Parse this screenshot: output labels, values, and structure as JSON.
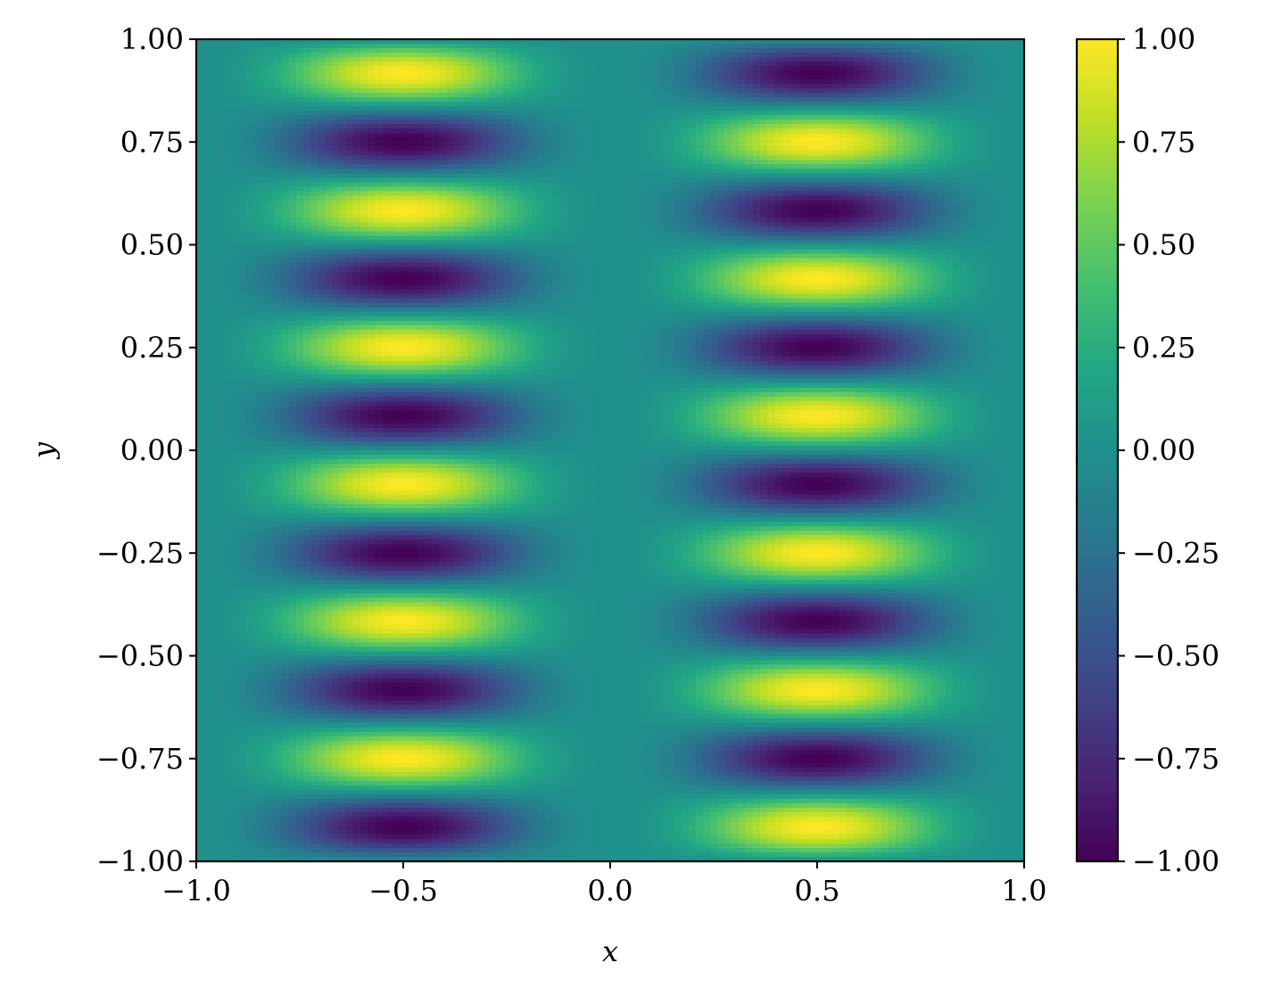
{
  "chart_data": {
    "type": "heatmap",
    "title": "",
    "xlabel": "x",
    "ylabel": "y",
    "xlim": [
      -1.0,
      1.0
    ],
    "ylim": [
      -1.0,
      1.0
    ],
    "x_ticks": [
      -1.0,
      -0.5,
      0.0,
      0.5,
      1.0
    ],
    "x_tick_labels": [
      "−1.0",
      "−0.5",
      "0.0",
      "0.5",
      "1.0"
    ],
    "y_ticks": [
      1.0,
      0.75,
      0.5,
      0.25,
      0.0,
      -0.25,
      -0.5,
      -0.75,
      -1.0
    ],
    "y_tick_labels": [
      "1.00",
      "0.75",
      "0.50",
      "0.25",
      "0.00",
      "−0.25",
      "−0.50",
      "−0.75",
      "−1.00"
    ],
    "colormap": "viridis",
    "colorbar": {
      "range": [
        -1.0,
        1.0
      ],
      "ticks": [
        1.0,
        0.75,
        0.5,
        0.25,
        0.0,
        -0.25,
        -0.5,
        -0.75,
        -1.0
      ],
      "tick_labels": [
        "1.00",
        "0.75",
        "0.50",
        "0.25",
        "0.00",
        "−0.25",
        "−0.50",
        "−0.75",
        "−1.00"
      ]
    },
    "grid": false
  }
}
